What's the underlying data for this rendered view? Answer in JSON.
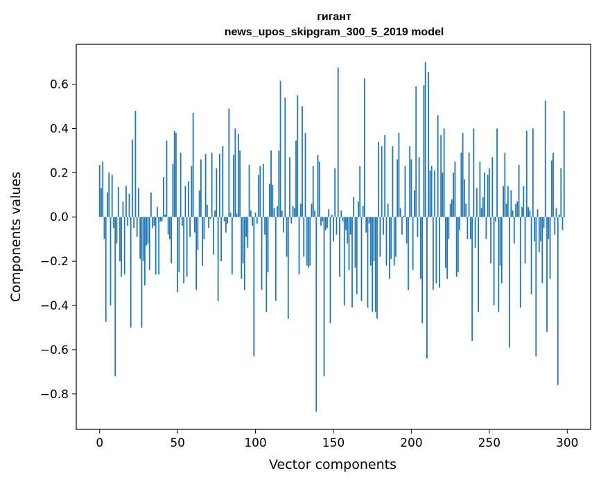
{
  "chart_data": {
    "type": "bar",
    "title_line1": "гигант",
    "title_line2": "news_upos_skipgram_300_5_2019 model",
    "xlabel": "Vector components",
    "ylabel": "Components values",
    "xlim": [
      -15,
      315
    ],
    "ylim": [
      -0.96,
      0.78
    ],
    "xticks": [
      0,
      50,
      100,
      150,
      200,
      250,
      300
    ],
    "xtick_labels": [
      "0",
      "50",
      "100",
      "150",
      "200",
      "250",
      "300"
    ],
    "yticks": [
      -0.8,
      -0.6,
      -0.4,
      -0.2,
      0.0,
      0.2,
      0.4,
      0.6
    ],
    "ytick_labels": [
      "−0.8",
      "−0.6",
      "−0.4",
      "−0.2",
      "0.0",
      "0.2",
      "0.4",
      "0.6"
    ],
    "bar_color": "#1f77b4",
    "x_start": 0,
    "values": [
      0.235,
      0.13,
      0.25,
      -0.1,
      -0.475,
      0.11,
      0.2,
      -0.4,
      0.19,
      -0.05,
      -0.72,
      -0.12,
      0.135,
      -0.2,
      -0.27,
      0.07,
      -0.26,
      0.14,
      -0.04,
      0.105,
      -0.5,
      0.35,
      -0.05,
      0.48,
      -0.09,
      0.13,
      -0.19,
      -0.5,
      -0.2,
      -0.31,
      -0.13,
      -0.12,
      -0.24,
      0.11,
      -0.05,
      -0.04,
      -0.26,
      0.045,
      -0.26,
      -0.02,
      -0.02,
      0.18,
      0.01,
      0.345,
      -0.08,
      -0.1,
      -0.21,
      0.24,
      0.39,
      0.38,
      -0.34,
      -0.25,
      0.29,
      -0.04,
      -0.3,
      0.14,
      -0.27,
      0.16,
      -0.09,
      0.23,
      0.47,
      -0.07,
      -0.33,
      -0.15,
      0.12,
      0.26,
      -0.22,
      -0.1,
      0.285,
      0.055,
      -0.05,
      -0.01,
      0.29,
      -0.17,
      0.03,
      0.22,
      -0.38,
      0.285,
      -0.2,
      0.32,
      -0.02,
      -0.07,
      -0.03,
      0.49,
      0.02,
      -0.26,
      0.28,
      0.4,
      0.015,
      0.375,
      0.3,
      -0.28,
      -0.21,
      -0.33,
      -0.09,
      -0.14,
      0.235,
      0.03,
      -0.04,
      -0.63,
      0.02,
      -0.03,
      0.19,
      0.23,
      -0.33,
      0.24,
      -0.08,
      -0.43,
      -0.25,
      0.15,
      0.3,
      0.145,
      0.04,
      -0.38,
      0.05,
      0.3,
      0.615,
      0.03,
      -0.07,
      0.54,
      -0.18,
      -0.46,
      0.27,
      -0.03,
      0.05,
      0.04,
      0.345,
      0.55,
      -0.26,
      0.06,
      0.5,
      -0.18,
      0.38,
      -0.22,
      -0.23,
      -0.22,
      0.06,
      0.23,
      0.03,
      -0.88,
      0.28,
      0.25,
      -0.04,
      -0.02,
      -0.72,
      -0.06,
      -0.05,
      0.035,
      -0.48,
      0.01,
      -0.11,
      0.22,
      -0.08,
      0.675,
      -0.27,
      0.03,
      -0.02,
      -0.4,
      -0.06,
      -0.12,
      -0.24,
      -0.08,
      -0.41,
      0.09,
      -0.23,
      -0.35,
      0.07,
      0.23,
      -0.38,
      0.05,
      0.625,
      -0.07,
      -0.41,
      -0.03,
      -0.22,
      -0.43,
      -0.2,
      -0.43,
      -0.46,
      0.34,
      -0.18,
      0.32,
      -0.08,
      0.37,
      -0.22,
      0.06,
      -0.28,
      -0.19,
      0.32,
      -0.22,
      -0.18,
      0.26,
      0.38,
      0.04,
      -0.08,
      0.005,
      0.23,
      -0.12,
      -0.33,
      0.32,
      0.26,
      -0.24,
      0.12,
      0.59,
      -0.09,
      0.27,
      -0.28,
      -0.48,
      0.595,
      0.7,
      -0.64,
      0.655,
      0.21,
      0.23,
      -0.33,
      0.21,
      -0.3,
      0.46,
      -0.32,
      0.37,
      0.2,
      0.4,
      -0.23,
      -0.28,
      -0.1,
      0.06,
      0.08,
      0.2,
      0.25,
      -0.27,
      -0.25,
      -0.06,
      0.29,
      0.38,
      0.17,
      0.06,
      -0.1,
      0.29,
      -0.1,
      -0.56,
      0.4,
      -0.14,
      0.13,
      -0.43,
      0.25,
      0.04,
      0.09,
      0.2,
      -0.1,
      0.19,
      0.22,
      -0.21,
      0.27,
      -0.4,
      -0.02,
      0.4,
      -0.43,
      -0.22,
      -0.3,
      0.14,
      0.29,
      0.06,
      0.14,
      -0.59,
      0.12,
      0.03,
      -0.12,
      0.06,
      0.07,
      0.235,
      -0.41,
      0.045,
      0.14,
      -0.21,
      0.39,
      0.045,
      0.03,
      -0.35,
      0.4,
      -0.11,
      -0.63,
      0.035,
      -0.16,
      -0.11,
      -0.3,
      -0.05,
      0.525,
      -0.52,
      -0.1,
      -0.28,
      0.255,
      0.29,
      -0.08,
      0.04,
      -0.76,
      0.01,
      0.22,
      -0.06,
      0.48,
      0.0
    ]
  }
}
